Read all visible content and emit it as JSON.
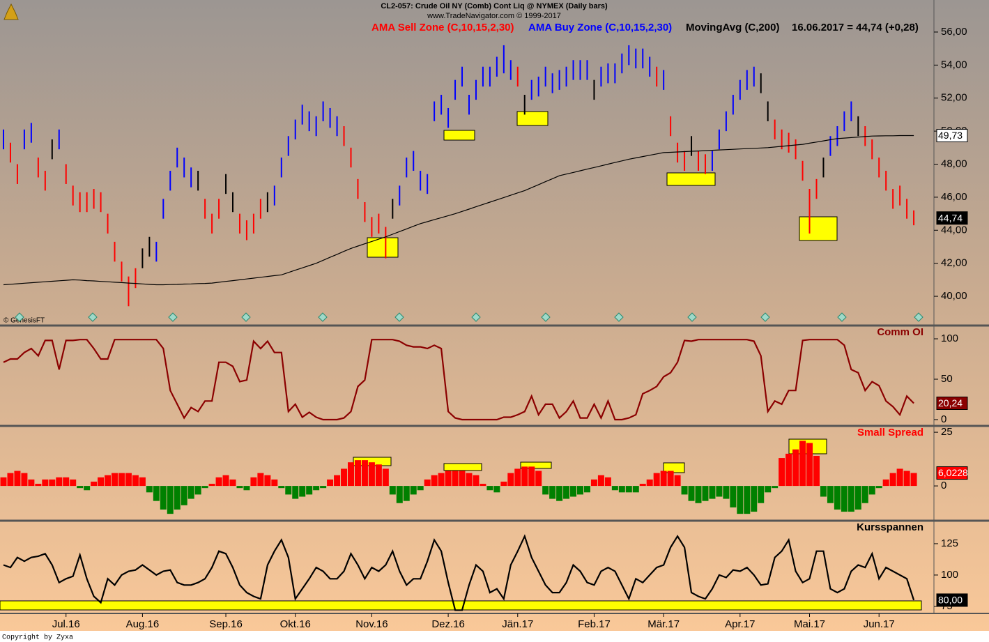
{
  "chart_data": [
    {
      "type": "ohlc",
      "title": "CL2-057:  Crude Oil NY (Comb) Cont Liq @ NYMEX  (Daily bars)",
      "subtitle": "www.TradeNavigator.com © 1999-2017",
      "annotation": "16.06.2017 = 44,74 (+0,28)",
      "series": [
        {
          "name": "AMA Sell Zone (C,10,15,2,30)",
          "color": "#ff0000"
        },
        {
          "name": "AMA Buy Zone (C,10,15,2,30)",
          "color": "#0000ff"
        },
        {
          "name": "MovingAvg (C,200)",
          "color": "#000000",
          "values": [
            40.7,
            40.73,
            40.76,
            40.79,
            40.82,
            40.85,
            40.88,
            40.91,
            40.94,
            40.97,
            41.0,
            40.98,
            40.95,
            40.93,
            40.9,
            40.88,
            40.85,
            40.83,
            40.8,
            40.78,
            40.75,
            40.72,
            40.7,
            40.7,
            40.71,
            40.72,
            40.74,
            40.75,
            40.77,
            40.78,
            40.8,
            40.85,
            40.9,
            40.95,
            41.0,
            41.05,
            41.1,
            41.15,
            41.2,
            41.25,
            41.3,
            41.44,
            41.58,
            41.72,
            41.86,
            42.0,
            42.18,
            42.36,
            42.54,
            42.72,
            42.9,
            43.04,
            43.18,
            43.32,
            43.46,
            43.6,
            43.76,
            43.92,
            44.08,
            44.24,
            44.4,
            44.52,
            44.64,
            44.76,
            44.88,
            45.0,
            45.14,
            45.28,
            45.42,
            45.56,
            45.7,
            45.84,
            45.98,
            46.12,
            46.26,
            46.4,
            46.58,
            46.76,
            46.94,
            47.12,
            47.3,
            47.4,
            47.5,
            47.6,
            47.7,
            47.8,
            47.9,
            48.0,
            48.1,
            48.2,
            48.3,
            48.38,
            48.46,
            48.54,
            48.62,
            48.7,
            48.72,
            48.74,
            48.76,
            48.78,
            48.8,
            48.82,
            48.84,
            48.86,
            48.88,
            48.9,
            48.92,
            48.94,
            48.96,
            48.98,
            49.0,
            49.04,
            49.08,
            49.12,
            49.16,
            49.2,
            49.27,
            49.34,
            49.41,
            49.48,
            49.55,
            49.58,
            49.61,
            49.64,
            49.67,
            49.7,
            49.71,
            49.72,
            49.72,
            49.73,
            49.73,
            49.73
          ]
        }
      ],
      "neutral_color": "#000000",
      "high": [
        50.1,
        49.3,
        48.0,
        50.1,
        50.5,
        48.4,
        47.6,
        49.5,
        50.1,
        48.0,
        46.7,
        46.3,
        46.3,
        46.5,
        46.3,
        45.0,
        43.3,
        42.1,
        41.2,
        41.7,
        42.9,
        43.6,
        43.3,
        45.9,
        47.6,
        49.0,
        48.4,
        47.8,
        47.6,
        45.9,
        45.0,
        45.9,
        47.4,
        46.3,
        45.0,
        44.6,
        45.0,
        45.9,
        46.3,
        46.7,
        48.4,
        49.7,
        50.7,
        51.6,
        51.2,
        50.9,
        51.8,
        51.4,
        50.9,
        50.3,
        49.0,
        47.1,
        45.7,
        44.8,
        45.0,
        44.2,
        45.9,
        46.7,
        48.4,
        48.8,
        47.6,
        47.4,
        51.8,
        52.2,
        51.4,
        53.1,
        53.9,
        52.2,
        53.1,
        53.9,
        53.9,
        54.5,
        55.2,
        54.3,
        53.9,
        52.2,
        53.1,
        53.3,
        53.9,
        53.5,
        53.7,
        53.9,
        54.3,
        54.3,
        54.3,
        53.1,
        53.9,
        54.1,
        54.1,
        54.7,
        55.2,
        55.0,
        55.0,
        54.5,
        53.9,
        53.7,
        50.9,
        49.3,
        48.8,
        49.7,
        48.8,
        48.6,
        48.8,
        50.1,
        51.2,
        52.2,
        53.1,
        53.7,
        53.9,
        53.5,
        51.8,
        50.7,
        50.1,
        49.9,
        49.5,
        48.2,
        46.5,
        47.1,
        48.4,
        49.7,
        50.3,
        51.2,
        51.8,
        50.9,
        50.3,
        49.5,
        48.4,
        47.6,
        46.5,
        46.7,
        45.9,
        45.2
      ],
      "low": [
        48.9,
        48.1,
        46.8,
        48.9,
        49.3,
        47.2,
        46.4,
        48.3,
        48.9,
        46.8,
        45.5,
        45.1,
        45.1,
        45.3,
        45.1,
        43.8,
        42.1,
        40.9,
        39.4,
        40.5,
        41.7,
        42.4,
        42.1,
        44.7,
        46.4,
        47.8,
        47.2,
        46.6,
        46.4,
        44.7,
        43.8,
        44.7,
        46.2,
        45.1,
        43.8,
        43.4,
        43.8,
        44.7,
        45.1,
        45.5,
        47.2,
        48.5,
        49.5,
        50.4,
        50.0,
        49.7,
        50.6,
        50.2,
        49.7,
        49.1,
        47.8,
        45.9,
        44.5,
        43.6,
        43.8,
        42.3,
        44.7,
        45.5,
        47.2,
        47.6,
        46.4,
        46.2,
        50.6,
        51.0,
        50.2,
        51.9,
        52.7,
        51.0,
        51.9,
        52.7,
        52.7,
        53.3,
        53.5,
        53.1,
        52.7,
        51.0,
        51.9,
        52.1,
        52.7,
        52.3,
        52.5,
        52.7,
        53.1,
        53.1,
        53.1,
        51.9,
        52.7,
        52.9,
        52.9,
        53.5,
        54.0,
        53.8,
        53.8,
        53.3,
        52.7,
        52.5,
        49.7,
        48.1,
        47.6,
        48.5,
        47.6,
        47.4,
        47.6,
        48.9,
        50.0,
        51.0,
        51.9,
        52.5,
        52.7,
        52.3,
        50.6,
        49.5,
        48.9,
        48.7,
        48.3,
        47.0,
        43.8,
        45.9,
        47.2,
        48.5,
        49.1,
        50.0,
        50.6,
        49.7,
        49.1,
        48.3,
        47.2,
        46.4,
        45.3,
        45.5,
        44.7,
        44.3
      ],
      "zone": [
        1,
        0,
        0,
        1,
        1,
        0,
        0,
        null,
        1,
        0,
        0,
        0,
        0,
        0,
        0,
        0,
        0,
        0,
        0,
        0,
        null,
        null,
        1,
        1,
        1,
        1,
        1,
        1,
        null,
        0,
        0,
        0,
        null,
        null,
        0,
        0,
        0,
        0,
        null,
        1,
        1,
        1,
        1,
        1,
        1,
        1,
        1,
        1,
        1,
        0,
        0,
        0,
        0,
        0,
        0,
        0,
        null,
        1,
        1,
        1,
        1,
        1,
        1,
        1,
        1,
        1,
        1,
        1,
        1,
        1,
        1,
        1,
        1,
        1,
        0,
        null,
        1,
        1,
        1,
        1,
        1,
        1,
        1,
        1,
        1,
        null,
        1,
        1,
        1,
        1,
        1,
        1,
        1,
        1,
        0,
        1,
        0,
        0,
        0,
        null,
        0,
        0,
        1,
        1,
        1,
        1,
        1,
        1,
        1,
        null,
        null,
        0,
        0,
        0,
        0,
        0,
        0,
        0,
        null,
        1,
        1,
        1,
        1,
        null,
        0,
        0,
        0,
        0,
        0,
        0,
        0,
        0
      ],
      "ylim": [
        38.23,
        57.94
      ],
      "yticks": [
        {
          "value": 40,
          "label": "40,00"
        },
        {
          "value": 42,
          "label": "42,00"
        },
        {
          "value": 44,
          "label": "44,00"
        },
        {
          "value": 46,
          "label": "46,00"
        },
        {
          "value": 48,
          "label": "48,00"
        },
        {
          "value": 50,
          "label": "50,00"
        },
        {
          "value": 52,
          "label": "52,00"
        },
        {
          "value": 54,
          "label": "54,00"
        },
        {
          "value": 56,
          "label": "56,00"
        }
      ],
      "xticks": [
        {
          "value": 9,
          "label": "Jul.16"
        },
        {
          "value": 20,
          "label": "Aug.16"
        },
        {
          "value": 32,
          "label": "Sep.16"
        },
        {
          "value": 42,
          "label": "Okt.16"
        },
        {
          "value": 53,
          "label": "Nov.16"
        },
        {
          "value": 64,
          "label": "Dez.16"
        },
        {
          "value": 74,
          "label": "Jän.17"
        },
        {
          "value": 85,
          "label": "Feb.17"
        },
        {
          "value": 95,
          "label": "Mär.17"
        },
        {
          "value": 106,
          "label": "Apr.17"
        },
        {
          "value": 116,
          "label": "Mai.17"
        },
        {
          "value": 126,
          "label": "Jun.17"
        }
      ],
      "ma_label": {
        "value": 49.73,
        "label": "49,73"
      },
      "close_label": {
        "value": 44.74,
        "label": "44,74"
      },
      "source": "© GenesisFT",
      "copyright": "Copyright by Zyxa"
    },
    {
      "type": "line",
      "title": "Comm OI",
      "color": "#8b0000",
      "values": [
        71,
        75,
        75,
        83,
        88,
        79,
        98,
        98,
        62,
        98,
        98,
        99,
        99,
        88,
        75,
        75,
        99,
        99,
        99,
        99,
        99,
        99,
        99,
        88,
        36,
        19,
        2,
        15,
        10,
        23,
        23,
        71,
        71,
        66,
        47,
        49,
        97,
        88,
        97,
        83,
        83,
        10,
        19,
        3,
        9,
        3,
        0,
        0,
        0,
        2,
        10,
        41,
        49,
        99,
        99,
        99,
        99,
        97,
        92,
        90,
        90,
        88,
        92,
        88,
        10,
        2,
        0,
        0,
        0,
        0,
        0,
        0,
        3,
        3,
        6,
        10,
        29,
        6,
        19,
        19,
        2,
        10,
        23,
        2,
        2,
        19,
        2,
        23,
        0,
        0,
        2,
        6,
        32,
        36,
        41,
        53,
        58,
        71,
        98,
        97,
        99,
        99,
        99,
        99,
        99,
        99,
        99,
        99,
        97,
        79,
        10,
        23,
        19,
        36,
        36,
        98,
        99,
        99,
        99,
        99,
        99,
        92,
        62,
        58,
        36,
        47,
        42,
        23,
        16,
        6,
        29,
        20.24
      ],
      "ylim": [
        -7.8,
        114.7
      ],
      "yticks": [
        0,
        50,
        100
      ],
      "last_label": {
        "value": 20.24,
        "label": "20,24"
      }
    },
    {
      "type": "bar",
      "title": "Small Spread",
      "color": "#ff0000",
      "negative_color": "#008000",
      "values": [
        4,
        6,
        7,
        6,
        3,
        1,
        3,
        3,
        4,
        4,
        3,
        -1,
        -2,
        2,
        4,
        5,
        6,
        6,
        6,
        5,
        4,
        -3,
        -7,
        -11,
        -13,
        -11,
        -9,
        -6,
        -4,
        -1,
        1,
        4,
        5,
        3,
        -1,
        -2,
        4,
        6,
        5,
        3,
        -1,
        -4,
        -6,
        -5,
        -4,
        -2,
        -1,
        3,
        5,
        8,
        11,
        12,
        12,
        11,
        10,
        8,
        -4,
        -8,
        -7,
        -4,
        -2,
        3,
        5,
        6,
        7,
        7,
        7,
        6,
        5,
        1,
        -2,
        -3,
        2,
        6,
        8,
        9,
        9,
        7,
        -4,
        -6,
        -7,
        -6,
        -5,
        -4,
        -3,
        3,
        5,
        4,
        -2,
        -3,
        -3,
        -3,
        1,
        3,
        6,
        7,
        7,
        5,
        -4,
        -7,
        -8,
        -7,
        -6,
        -5,
        -6,
        -10,
        -13,
        -13,
        -12,
        -8,
        -3,
        -1,
        13,
        15,
        17,
        21,
        20,
        14,
        -5,
        -8,
        -11,
        -12,
        -12,
        -11,
        -8,
        -4,
        -1,
        3,
        6,
        8,
        7,
        6.0228
      ],
      "ylim": [
        -16.2,
        27.3
      ],
      "yticks": [
        0,
        25
      ],
      "last_label": {
        "value": 6.0228,
        "label": "6,0228"
      }
    },
    {
      "type": "line",
      "title": "Kursspannen",
      "color": "#000000",
      "values": [
        108,
        106,
        114,
        111,
        114,
        115,
        117,
        108,
        94,
        97,
        99,
        116,
        97,
        83,
        78,
        97,
        92,
        100,
        103,
        104,
        108,
        104,
        100,
        103,
        104,
        94,
        92,
        92,
        94,
        97,
        106,
        119,
        117,
        106,
        92,
        86,
        83,
        81,
        108,
        119,
        128,
        114,
        81,
        89,
        97,
        106,
        103,
        97,
        97,
        103,
        117,
        108,
        97,
        106,
        103,
        108,
        119,
        103,
        92,
        97,
        97,
        111,
        128,
        119,
        94,
        72,
        72,
        92,
        108,
        103,
        86,
        89,
        81,
        108,
        119,
        131,
        114,
        103,
        92,
        86,
        86,
        94,
        108,
        103,
        94,
        92,
        103,
        106,
        103,
        92,
        81,
        97,
        94,
        100,
        106,
        108,
        122,
        131,
        122,
        86,
        83,
        81,
        89,
        100,
        98,
        104,
        103,
        106,
        100,
        92,
        93,
        114,
        119,
        128,
        103,
        94,
        97,
        119,
        119,
        89,
        86,
        89,
        103,
        108,
        106,
        117,
        97,
        106,
        103,
        100,
        97,
        80
      ],
      "ylim": [
        69.4,
        142.2
      ],
      "yticks": [
        75,
        100,
        125
      ],
      "last_label": {
        "value": 80,
        "label": "80,00"
      }
    }
  ]
}
